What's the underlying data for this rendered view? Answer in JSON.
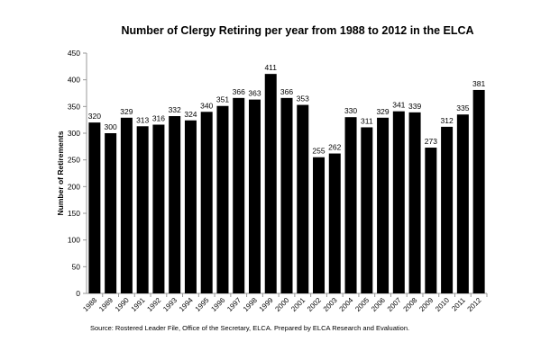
{
  "chart_data": {
    "type": "bar",
    "title": "Number of Clergy Retiring per year from 1988 to 2012 in the ELCA",
    "xlabel": "",
    "ylabel": "Number of Retirements",
    "ylim": [
      0,
      450
    ],
    "yticks": [
      0,
      50,
      100,
      150,
      200,
      250,
      300,
      350,
      400,
      450
    ],
    "grid": false,
    "bar_color": "#000000",
    "categories": [
      "1988",
      "1989",
      "1990",
      "1991",
      "1992",
      "1993",
      "1994",
      "1995",
      "1996",
      "1997",
      "1998",
      "1999",
      "2000",
      "2001",
      "2002",
      "2003",
      "2004",
      "2005",
      "2006",
      "2007",
      "2008",
      "2009",
      "2010",
      "2011",
      "2012"
    ],
    "values": [
      320,
      300,
      329,
      313,
      316,
      332,
      324,
      340,
      351,
      366,
      363,
      411,
      366,
      353,
      255,
      262,
      330,
      311,
      329,
      341,
      339,
      273,
      312,
      335,
      381
    ],
    "source": "Source:  Rostered Leader File, Office of the Secretary, ELCA.  Prepared by ELCA Research and Evaluation."
  }
}
